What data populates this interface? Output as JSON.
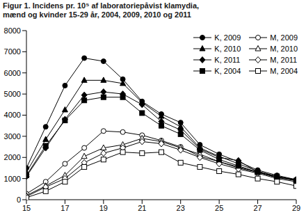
{
  "chart_data": {
    "type": "line",
    "title": "Figur 1. Incidens pr. 10⁵ af laboratoriepåvist klamydia, mænd og kvinder 15-29 år, 2004, 2009, 2010 og 2011",
    "x": [
      15,
      16,
      17,
      18,
      19,
      20,
      21,
      22,
      23,
      24,
      25,
      26,
      27,
      28,
      29
    ],
    "xlim": [
      15,
      29
    ],
    "xticks": [
      15,
      17,
      19,
      21,
      23,
      25,
      27,
      29
    ],
    "ylim": [
      0,
      8000
    ],
    "yticks": [
      0,
      1000,
      2000,
      3000,
      4000,
      5000,
      6000,
      7000,
      8000
    ],
    "grid": false,
    "legend": "upper right",
    "series": [
      {
        "name": "K, 2009",
        "color": "#000000",
        "marker": "circle",
        "values": [
          1500,
          3450,
          5400,
          6700,
          6550,
          5700,
          4650,
          4050,
          3650,
          2600,
          2150,
          1800,
          1400,
          1150,
          950
        ]
      },
      {
        "name": "M, 2009",
        "color": "#000000",
        "marker": "open-circle",
        "values": [
          280,
          850,
          1700,
          2450,
          3250,
          3200,
          3050,
          2800,
          2500,
          2050,
          1800,
          1500,
          1300,
          1100,
          950
        ]
      },
      {
        "name": "K, 2010",
        "color": "#000000",
        "marker": "triangle",
        "values": [
          1300,
          2850,
          4250,
          5650,
          5650,
          5500,
          4600,
          3950,
          3450,
          2450,
          2050,
          1700,
          1350,
          1100,
          900
        ]
      },
      {
        "name": "M, 2010",
        "color": "#000000",
        "marker": "open-triangle",
        "values": [
          200,
          650,
          1150,
          2050,
          2450,
          2600,
          2900,
          2750,
          2450,
          2150,
          1800,
          1550,
          1300,
          1050,
          900
        ]
      },
      {
        "name": "K, 2011",
        "color": "#000000",
        "marker": "diamond",
        "values": [
          1100,
          2450,
          3800,
          4950,
          5100,
          5000,
          4500,
          3700,
          3300,
          2400,
          2000,
          1850,
          1300,
          1050,
          950
        ]
      },
      {
        "name": "M, 2011",
        "color": "#000000",
        "marker": "open-diamond",
        "values": [
          150,
          600,
          1000,
          1750,
          2200,
          2450,
          2750,
          2650,
          2350,
          2000,
          1700,
          1450,
          1250,
          1000,
          850
        ]
      },
      {
        "name": "K, 2004",
        "color": "#000000",
        "marker": "square",
        "values": [
          1150,
          2550,
          3750,
          4700,
          4850,
          4850,
          4100,
          3500,
          3100,
          2350,
          1900,
          1600,
          1300,
          1100,
          900
        ]
      },
      {
        "name": "M, 2004",
        "color": "#000000",
        "marker": "open-square",
        "values": [
          100,
          400,
          850,
          1550,
          1900,
          2250,
          2200,
          2250,
          1750,
          1550,
          1350,
          1200,
          1000,
          850,
          650
        ]
      }
    ]
  }
}
